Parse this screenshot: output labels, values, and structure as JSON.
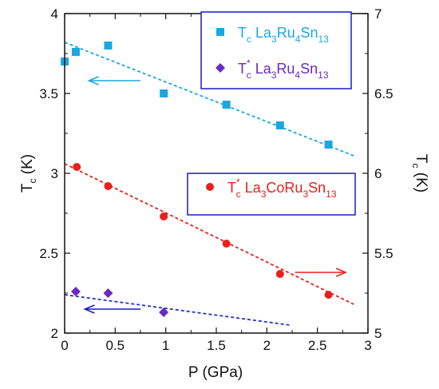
{
  "chart_data": {
    "type": "scatter",
    "xlabel": "P  (GPa)",
    "ylabel_left": "T",
    "ylabel_left_sub": "c",
    "ylabel_left_unit": " (K)",
    "ylabel_right": "T",
    "ylabel_right_sub": "c",
    "ylabel_right_unit": " (K)",
    "xlim": [
      0,
      3
    ],
    "ylim_left": [
      2,
      4
    ],
    "ylim_right": [
      5,
      7
    ],
    "x_ticks": [
      "0",
      "0.5",
      "1",
      "1.5",
      "2",
      "2.5",
      "3"
    ],
    "y_left_ticks": [
      "2",
      "2.5",
      "3",
      "3.5",
      "4"
    ],
    "y_right_ticks": [
      "5",
      "5.5",
      "6",
      "6.5",
      "7"
    ],
    "series": [
      {
        "name": "T_c La3Ru4Sn13",
        "color": "#1aa8e0",
        "marker": "square",
        "axis": "left",
        "points": [
          [
            0.0,
            3.7
          ],
          [
            0.11,
            3.76
          ],
          [
            0.43,
            3.8
          ],
          [
            0.98,
            3.5
          ],
          [
            1.6,
            3.43
          ],
          [
            2.13,
            3.3
          ],
          [
            2.61,
            3.18
          ]
        ],
        "fit": [
          [
            0.0,
            3.82
          ],
          [
            2.86,
            3.11
          ]
        ],
        "arrow": {
          "from": [
            0.75,
            3.58
          ],
          "to": [
            0.24,
            3.58
          ],
          "direction": "left"
        }
      },
      {
        "name": "T*_c La3Ru4Sn13",
        "color": "#6a2bbf",
        "marker": "diamond",
        "axis": "left",
        "points": [
          [
            0.11,
            2.26
          ],
          [
            0.43,
            2.25
          ],
          [
            0.98,
            2.13
          ]
        ],
        "fit": [
          [
            0.0,
            2.24
          ],
          [
            2.23,
            2.05
          ]
        ],
        "fit_color": "#2233cc",
        "arrow": {
          "from": [
            0.75,
            2.15
          ],
          "to": [
            0.2,
            2.15
          ],
          "direction": "left",
          "color": "#1a1acc"
        }
      },
      {
        "name": "T*_c La3CoRu3Sn13",
        "color": "#e8201c",
        "marker": "circle",
        "axis": "right",
        "points": [
          [
            0.12,
            6.04
          ],
          [
            0.43,
            5.92
          ],
          [
            0.98,
            5.73
          ],
          [
            1.6,
            5.56
          ],
          [
            2.13,
            5.37
          ],
          [
            2.61,
            5.24
          ]
        ],
        "fit": [
          [
            0.0,
            6.06
          ],
          [
            2.86,
            5.18
          ]
        ],
        "arrow": {
          "from": [
            2.28,
            5.38
          ],
          "to": [
            2.78,
            5.38
          ],
          "direction": "right"
        }
      }
    ],
    "legends": [
      {
        "T": "T",
        "sub": "c",
        "sup": "",
        "compound": [
          [
            "La",
            ""
          ],
          [
            "3",
            "sub"
          ],
          [
            "Ru",
            ""
          ],
          [
            "4",
            "sub"
          ],
          [
            "Sn",
            ""
          ],
          [
            "13",
            "sub"
          ]
        ],
        "color": "#1aa8e0",
        "marker": "square"
      },
      {
        "T": "T",
        "sub": "c",
        "sup": "*",
        "compound": [
          [
            "La",
            ""
          ],
          [
            "3",
            "sub"
          ],
          [
            "Ru",
            ""
          ],
          [
            "4",
            "sub"
          ],
          [
            "Sn",
            ""
          ],
          [
            "13",
            "sub"
          ]
        ],
        "color": "#6a2bbf",
        "marker": "diamond"
      },
      {
        "T": "T",
        "sub": "c",
        "sup": "*",
        "compound": [
          [
            "La",
            ""
          ],
          [
            "3",
            "sub"
          ],
          [
            "Co",
            ""
          ],
          [
            "Ru",
            ""
          ],
          [
            "3",
            "sub"
          ],
          [
            "Sn",
            ""
          ],
          [
            "13",
            "sub"
          ]
        ],
        "color": "#e8201c",
        "marker": "circle"
      }
    ]
  }
}
